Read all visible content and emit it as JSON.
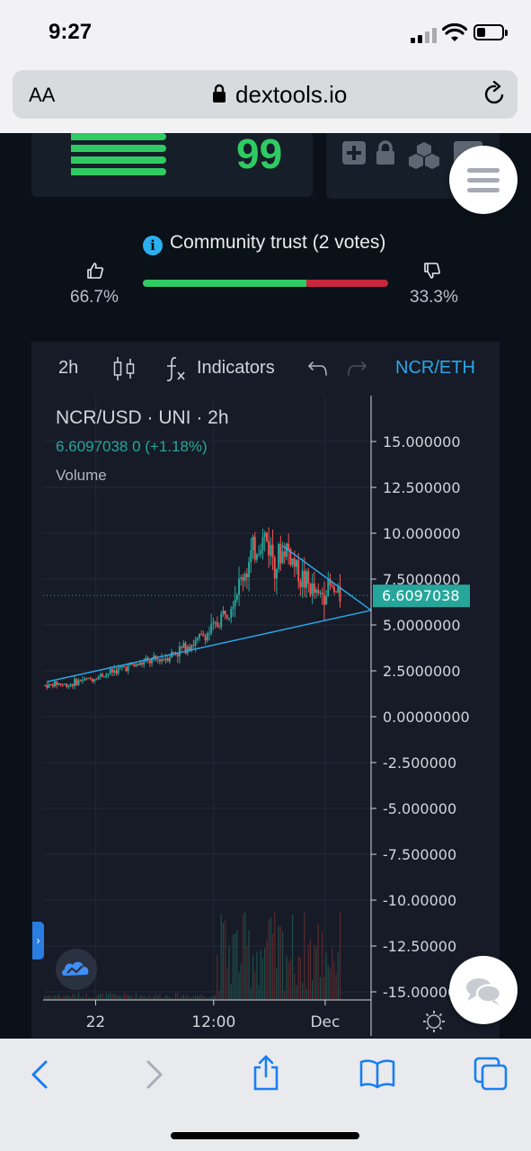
{
  "status_bar": {
    "time": "9:27"
  },
  "browser": {
    "text_size_label": "AA",
    "domain": "dextools.io"
  },
  "score": {
    "value": "99"
  },
  "trust": {
    "title": "Community trust (2 votes)",
    "up_pct": "66.7%",
    "down_pct": "33.3%",
    "positive_fraction": 0.667
  },
  "chart_toolbar": {
    "interval": "2h",
    "indicators_label": "Indicators",
    "pair": "NCR/ETH"
  },
  "chart_legend": {
    "symbol": "NCR/USD · UNI · 2h",
    "price_line": "6.6097038  0 (+1.18%)",
    "volume_label": "Volume"
  },
  "chart_data": {
    "type": "candlestick",
    "title": "NCR/USD · UNI · 2h",
    "current_price": 6.6097038,
    "current_price_label": "6.6097038",
    "ylim": [
      -15,
      16
    ],
    "y_ticks": [
      "15.000000",
      "12.500000",
      "10.000000",
      "7.5000000",
      "5.0000000",
      "2.5000000",
      "0.00000000",
      "-2.500000",
      "-5.000000",
      "-7.500000",
      "-10.00000",
      "-12.50000",
      "-15.00000"
    ],
    "y_tick_values": [
      15,
      12.5,
      10,
      7.5,
      5,
      2.5,
      0,
      -2.5,
      -5,
      -7.5,
      -10,
      -12.5,
      -15
    ],
    "x_ticks": [
      "22",
      "12:00",
      "Dec"
    ],
    "x_tick_positions": [
      0.16,
      0.52,
      0.86
    ],
    "approx_close_series": [
      1.7,
      1.7,
      1.8,
      1.8,
      1.7,
      1.8,
      1.9,
      2.0,
      2.0,
      2.1,
      2.2,
      2.3,
      2.4,
      2.5,
      2.6,
      2.7,
      2.8,
      2.8,
      2.9,
      3.0,
      3.0,
      3.1,
      3.2,
      3.3,
      3.5,
      3.6,
      3.8,
      4.0,
      4.0,
      4.3,
      4.5,
      4.7,
      5.0,
      5.5,
      6.0,
      6.5,
      7.0,
      7.8,
      8.3,
      9.0,
      9.5,
      9.8,
      9.2,
      8.5,
      8.8,
      9.3,
      8.6,
      8.0,
      7.5,
      7.2,
      6.8,
      6.5,
      6.9,
      7.1,
      6.7,
      6.6
    ],
    "trendlines": [
      {
        "from": [
          0.0,
          1.9
        ],
        "to": [
          1.0,
          5.8
        ]
      },
      {
        "from": [
          0.72,
          9.3
        ],
        "to": [
          1.0,
          5.8
        ]
      }
    ]
  },
  "colors": {
    "up": "#26a69a",
    "down": "#ef5350",
    "accent": "#2aa8e8",
    "score_green": "#2fcb62"
  }
}
